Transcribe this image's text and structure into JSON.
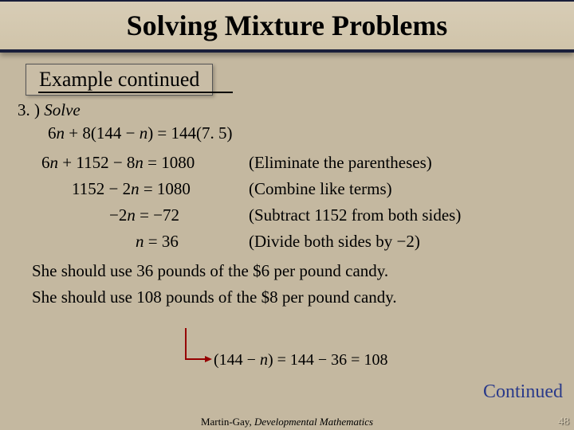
{
  "title": "Solving Mixture Problems",
  "subtitle": "Example continued",
  "step": {
    "num": "3. )",
    "label": "Solve"
  },
  "eq0": "6n + 8(144 − n) = 144(7. 5)",
  "rows": [
    {
      "left": "6n + 1152 − 8n = 1080",
      "right": "(Eliminate the parentheses)"
    },
    {
      "left": "1152 − 2n = 1080",
      "right": "(Combine like terms)"
    },
    {
      "left": "−2n = −72",
      "right": "(Subtract 1152 from both sides)"
    },
    {
      "left": "n = 36",
      "right": "(Divide both sides by −2)"
    }
  ],
  "answers": [
    "She should use 36 pounds of the $6 per pound candy.",
    "She should use 108 pounds of the $8 per pound candy."
  ],
  "calc": "(144 − n) = 144 − 36 = 108",
  "continued": "Continued",
  "footer_author": "Martin-Gay, ",
  "footer_title": "Developmental Mathematics",
  "page": "48"
}
